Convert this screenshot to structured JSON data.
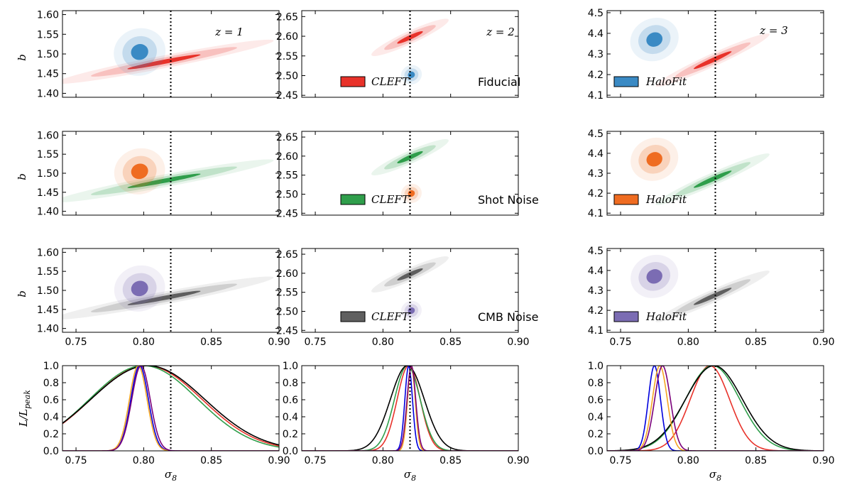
{
  "chart_data": {
    "type": "contour-grid",
    "colors": {
      "Fiducial": "#e8322a",
      "HaloFit_fid": "#3a8ac4",
      "ShotNoise": "#2f9e4b",
      "HaloFit_shot": "#ef6c21",
      "CMBNoise": "#5f5f5f",
      "HaloFit_cmb": "#7b6cb3",
      "fiducial_sigma8_line": "#000000"
    },
    "sigma8_fiducial": 0.82,
    "xlabel": "σ",
    "xlabel_sub": "8",
    "ylabel_b": "b",
    "ylabel_like": "L/L",
    "ylabel_like_sub": "peak",
    "xticks": [
      "0.75",
      "0.80",
      "0.85",
      "0.90"
    ],
    "xtick_values": [
      0.75,
      0.8,
      0.85,
      0.9
    ],
    "xlim": [
      0.74,
      0.9
    ],
    "columns": [
      {
        "z_label": "z = 1",
        "ylim": [
          1.39,
          1.61
        ],
        "yticks": [
          "1.40",
          "1.45",
          "1.50",
          "1.55",
          "1.60"
        ],
        "ytick_values": [
          1.4,
          1.45,
          1.5,
          1.55,
          1.6
        ],
        "cleft": {
          "sigma8": 0.815,
          "b": 1.48,
          "s_sigma8": 0.027,
          "s_b": 0.018
        },
        "halofit": {
          "sigma8": 0.797,
          "b": 1.505,
          "s_sigma8": 0.0065,
          "s_b": 0.021
        }
      },
      {
        "z_label": "z = 2",
        "ylim": [
          2.445,
          2.665
        ],
        "yticks": [
          "2.45",
          "2.50",
          "2.55",
          "2.60",
          "2.65"
        ],
        "ytick_values": [
          2.45,
          2.5,
          2.55,
          2.6,
          2.65
        ],
        "cleft": {
          "sigma8": 0.82,
          "b": 2.597,
          "s_sigma8": 0.0095,
          "s_b": 0.015
        },
        "halofit": {
          "sigma8": 0.821,
          "b": 2.502,
          "s_sigma8": 0.0025,
          "s_b": 0.009
        }
      },
      {
        "z_label": "z = 3",
        "ylim": [
          4.09,
          4.51
        ],
        "yticks": [
          "4.1",
          "4.2",
          "4.3",
          "4.4",
          "4.5"
        ],
        "ytick_values": [
          4.1,
          4.2,
          4.3,
          4.4,
          4.5
        ],
        "cleft": {
          "sigma8": 0.818,
          "b": 4.27,
          "s_sigma8": 0.014,
          "s_b": 0.042
        },
        "halofit": {
          "sigma8": 0.775,
          "b": 4.37,
          "s_sigma8": 0.0055,
          "s_b": 0.042
        }
      }
    ],
    "rows": [
      {
        "name": "Fiducial",
        "cleft_color": "#e8322a",
        "halofit_color": "#3a8ac4",
        "legend_main": "Fiducial"
      },
      {
        "name": "Shot Noise",
        "cleft_color": "#2f9e4b",
        "halofit_color": "#ef6c21",
        "legend_main": "Shot Noise"
      },
      {
        "name": "CMB Noise",
        "cleft_color": "#5f5f5f",
        "halofit_color": "#7b6cb3",
        "legend_main": "CMB Noise"
      }
    ],
    "legend": {
      "cleft_label": "CLEFT",
      "halofit_label": "HaloFit"
    },
    "likelihood": {
      "ylim": [
        0.0,
        1.0
      ],
      "yticks": [
        "0.0",
        "0.2",
        "0.4",
        "0.6",
        "0.8",
        "1.0"
      ],
      "ytick_values": [
        0.0,
        0.2,
        0.4,
        0.6,
        0.8,
        1.0
      ],
      "curves": [
        [
          {
            "color": "#e8322a",
            "mu": 0.802,
            "sigma": 0.041
          },
          {
            "color": "#2f9e4b",
            "mu": 0.8,
            "sigma": 0.04
          },
          {
            "color": "#000000",
            "mu": 0.803,
            "sigma": 0.042
          },
          {
            "color": "#0000dd",
            "mu": 0.797,
            "sigma": 0.0065
          },
          {
            "color": "#f5a623",
            "mu": 0.796,
            "sigma": 0.0065
          },
          {
            "color": "#7a007a",
            "mu": 0.798,
            "sigma": 0.0068
          }
        ],
        [
          {
            "color": "#e8322a",
            "mu": 0.819,
            "sigma": 0.0085
          },
          {
            "color": "#2f9e4b",
            "mu": 0.818,
            "sigma": 0.0095
          },
          {
            "color": "#000000",
            "mu": 0.818,
            "sigma": 0.0125
          },
          {
            "color": "#0000dd",
            "mu": 0.819,
            "sigma": 0.0028
          },
          {
            "color": "#f5a623",
            "mu": 0.821,
            "sigma": 0.0028
          },
          {
            "color": "#7a007a",
            "mu": 0.821,
            "sigma": 0.0032
          }
        ],
        [
          {
            "color": "#e8322a",
            "mu": 0.816,
            "sigma": 0.0145
          },
          {
            "color": "#2f9e4b",
            "mu": 0.818,
            "sigma": 0.02
          },
          {
            "color": "#000000",
            "mu": 0.819,
            "sigma": 0.021
          },
          {
            "color": "#0000dd",
            "mu": 0.775,
            "sigma": 0.0045
          },
          {
            "color": "#f5a623",
            "mu": 0.779,
            "sigma": 0.0055
          },
          {
            "color": "#7a007a",
            "mu": 0.781,
            "sigma": 0.0058
          }
        ]
      ]
    }
  }
}
